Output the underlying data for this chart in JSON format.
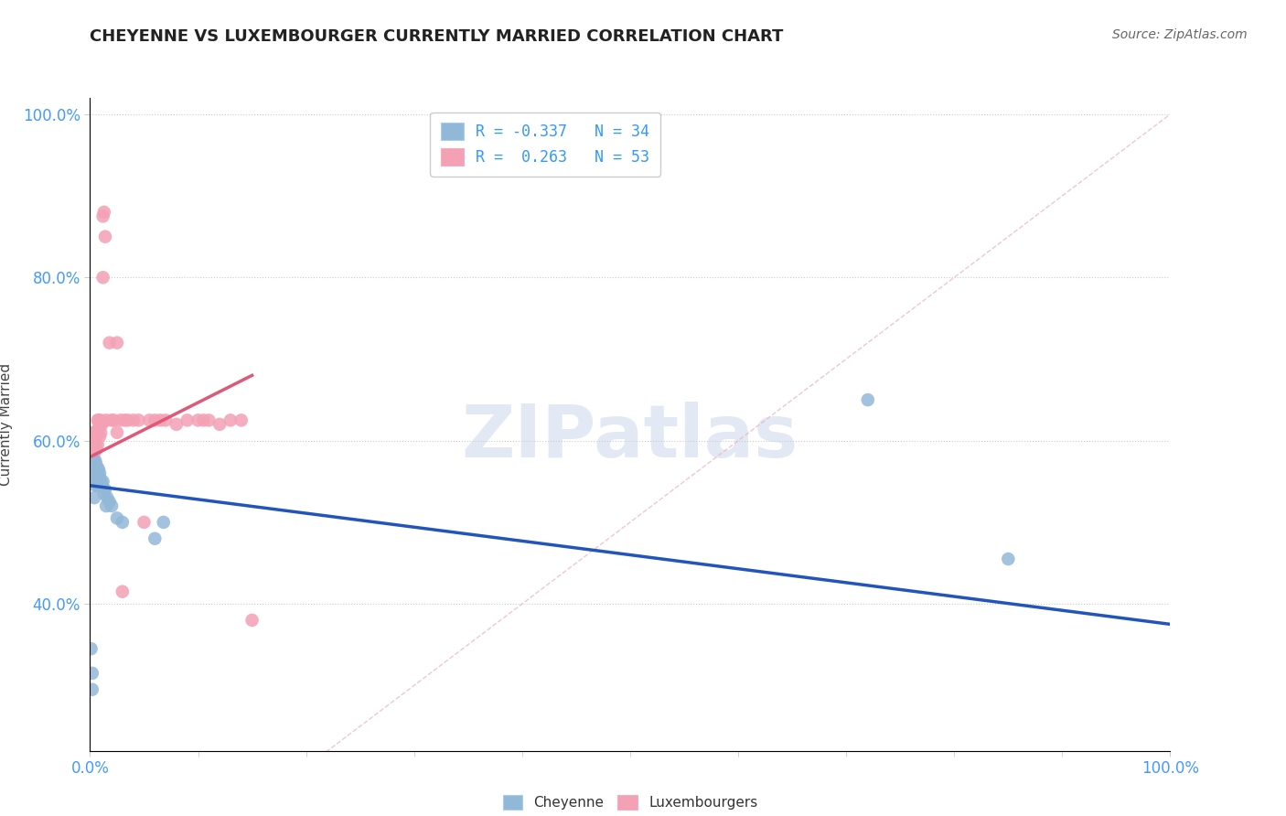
{
  "title": "CHEYENNE VS LUXEMBOURGER CURRENTLY MARRIED CORRELATION CHART",
  "source": "Source: ZipAtlas.com",
  "ylabel": "Currently Married",
  "watermark": "ZIPatlas",
  "cheyenne_color": "#92b8d8",
  "luxembourger_color": "#f4a0b5",
  "cheyenne_line_color": "#2255bb",
  "luxembourger_line_color": "#e05878",
  "diagonal_color": "#e8b0bc",
  "grid_color": "#cccccc",
  "axis_label_color": "#4499ff",
  "cheyenne_x": [
    0.001,
    0.002,
    0.002,
    0.003,
    0.003,
    0.004,
    0.004,
    0.005,
    0.005,
    0.005,
    0.006,
    0.006,
    0.007,
    0.007,
    0.008,
    0.008,
    0.009,
    0.009,
    0.01,
    0.01,
    0.011,
    0.012,
    0.013,
    0.014,
    0.015,
    0.016,
    0.018,
    0.02,
    0.025,
    0.03,
    0.06,
    0.068,
    0.72,
    0.85
  ],
  "cheyenne_y": [
    0.345,
    0.295,
    0.315,
    0.555,
    0.56,
    0.53,
    0.555,
    0.575,
    0.555,
    0.545,
    0.57,
    0.56,
    0.555,
    0.545,
    0.555,
    0.565,
    0.555,
    0.56,
    0.545,
    0.55,
    0.545,
    0.55,
    0.535,
    0.54,
    0.52,
    0.53,
    0.525,
    0.52,
    0.505,
    0.5,
    0.48,
    0.5,
    0.65,
    0.455
  ],
  "luxembourger_x": [
    0.001,
    0.002,
    0.002,
    0.003,
    0.003,
    0.004,
    0.004,
    0.004,
    0.005,
    0.005,
    0.006,
    0.006,
    0.006,
    0.007,
    0.007,
    0.007,
    0.008,
    0.008,
    0.009,
    0.009,
    0.01,
    0.01,
    0.011,
    0.012,
    0.012,
    0.013,
    0.014,
    0.015,
    0.018,
    0.02,
    0.022,
    0.025,
    0.025,
    0.028,
    0.03,
    0.032,
    0.035,
    0.04,
    0.045,
    0.05,
    0.055,
    0.06,
    0.065,
    0.07,
    0.08,
    0.09,
    0.1,
    0.105,
    0.11,
    0.12,
    0.13,
    0.14,
    0.15
  ],
  "luxembourger_y": [
    0.595,
    0.58,
    0.6,
    0.59,
    0.61,
    0.6,
    0.585,
    0.575,
    0.61,
    0.595,
    0.61,
    0.605,
    0.59,
    0.625,
    0.61,
    0.595,
    0.625,
    0.615,
    0.62,
    0.605,
    0.625,
    0.61,
    0.62,
    0.8,
    0.875,
    0.88,
    0.85,
    0.625,
    0.72,
    0.625,
    0.625,
    0.61,
    0.72,
    0.625,
    0.415,
    0.625,
    0.625,
    0.625,
    0.625,
    0.5,
    0.625,
    0.625,
    0.625,
    0.625,
    0.62,
    0.625,
    0.625,
    0.625,
    0.625,
    0.62,
    0.625,
    0.625,
    0.38
  ],
  "xlim": [
    0.0,
    1.0
  ],
  "ylim": [
    0.22,
    1.02
  ],
  "yticks": [
    0.4,
    0.6,
    0.8,
    1.0
  ],
  "ytick_labels": [
    "40.0%",
    "60.0%",
    "80.0%",
    "100.0%"
  ],
  "cheyenne_R": -0.337,
  "cheyenne_N": 34,
  "luxembourger_R": 0.263,
  "luxembourger_N": 53,
  "cheyenne_trend_x": [
    0.0,
    1.0
  ],
  "cheyenne_trend_y": [
    0.545,
    0.375
  ],
  "luxembourger_trend_x": [
    0.0,
    0.15
  ],
  "luxembourger_trend_y": [
    0.58,
    0.68
  ]
}
